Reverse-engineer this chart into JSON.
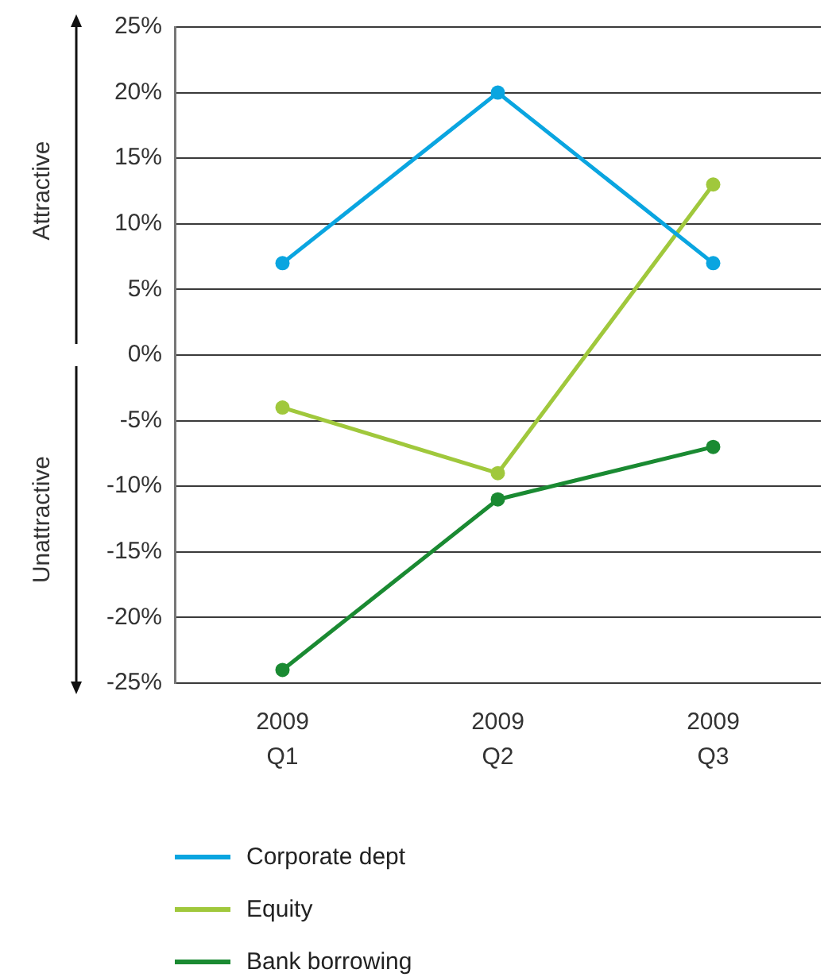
{
  "chart_data": {
    "type": "line",
    "categories": [
      "2009 Q1",
      "2009 Q2",
      "2009 Q3"
    ],
    "series": [
      {
        "name": "Corporate dept",
        "color": "#0aa5e0",
        "values": [
          7,
          20,
          7
        ]
      },
      {
        "name": "Equity",
        "color": "#a0c83c",
        "values": [
          -4,
          -9,
          13
        ]
      },
      {
        "name": "Bank borrowing",
        "color": "#1a8a32",
        "values": [
          -24,
          -11,
          -7
        ]
      }
    ],
    "ylim": [
      -25,
      25
    ],
    "yticks": [
      {
        "value": -25,
        "label": "-25%"
      },
      {
        "value": -20,
        "label": "-20%"
      },
      {
        "value": -15,
        "label": "-15%"
      },
      {
        "value": -10,
        "label": "-10%"
      },
      {
        "value": -5,
        "label": "-5%"
      },
      {
        "value": 0,
        "label": "0%"
      },
      {
        "value": 5,
        "label": "5%"
      },
      {
        "value": 10,
        "label": "10%"
      },
      {
        "value": 15,
        "label": "15%"
      },
      {
        "value": 20,
        "label": "20%"
      },
      {
        "value": 25,
        "label": "25%"
      }
    ],
    "annotations": [
      "Attractive",
      "Unattractive"
    ],
    "grid": "y",
    "legend": "bottom",
    "marker": "circle",
    "line_style": "solid"
  }
}
